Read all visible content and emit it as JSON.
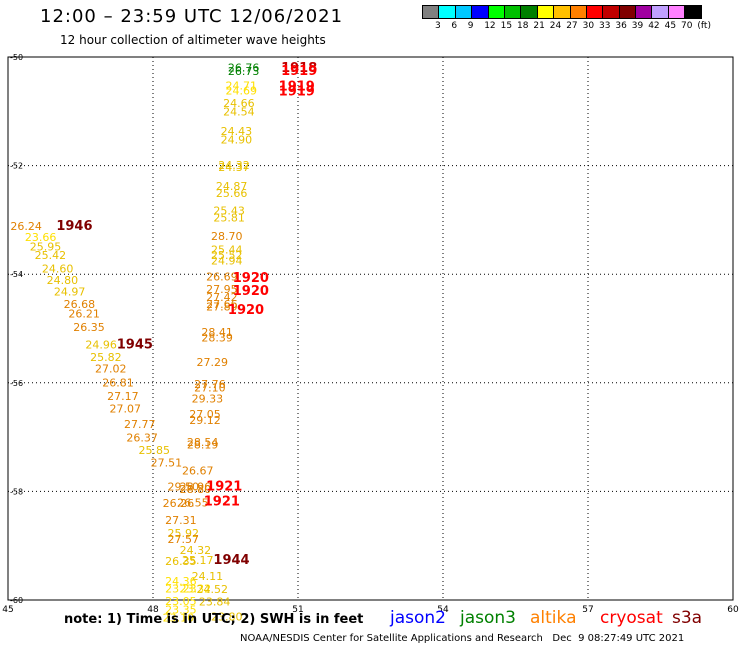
{
  "title": "12:00 – 23:59 UTC 12/06/2021",
  "subtitle": "12 hour collection of altimeter wave heights",
  "colorbar": {
    "colors": [
      "#808080",
      "#00ffff",
      "#00c8ff",
      "#0000ff",
      "#00ff00",
      "#00c000",
      "#008000",
      "#ffff00",
      "#ffc000",
      "#ff8000",
      "#ff0000",
      "#c00000",
      "#800000",
      "#a000a0",
      "#c0a0ff",
      "#ff80ff",
      "#000000"
    ],
    "labels": [
      "3",
      "6",
      "9",
      "12",
      "15",
      "18",
      "21",
      "24",
      "27",
      "30",
      "33",
      "36",
      "39",
      "42",
      "45",
      "70",
      "(ft)"
    ]
  },
  "note": "note:  1) Time is in UTC;  2) SWH is in feet",
  "satellites": [
    {
      "name": "jason2",
      "color": "#0000ff"
    },
    {
      "name": "jason3",
      "color": "#008000"
    },
    {
      "name": "altika",
      "color": "#ff8000"
    },
    {
      "name": "cryosat",
      "color": "#ff0000"
    },
    {
      "name": "s3a",
      "color": "#800000"
    }
  ],
  "credit": "NOAA/NESDIS Center for Satellite Applications and Research   Dec  9 08:27:49 UTC 2021",
  "chart_data": {
    "type": "scatter",
    "xlim": [
      45,
      60
    ],
    "ylim": [
      -60,
      -50
    ],
    "xticks": [
      "45",
      "48",
      "51",
      "54",
      "57",
      "60"
    ],
    "yticks": [
      "-50",
      "-52",
      "-54",
      "-56",
      "-58",
      "-60"
    ],
    "grid": true,
    "points": [
      {
        "x": 49.55,
        "y": -50.27,
        "v": "26.76",
        "c": "#008000"
      },
      {
        "x": 49.55,
        "y": -50.33,
        "v": "26.73",
        "c": "#008000"
      },
      {
        "x": 49.5,
        "y": -50.6,
        "v": "24.71",
        "c": "#ffe000"
      },
      {
        "x": 49.5,
        "y": -50.69,
        "v": "24.69",
        "c": "#ffe000"
      },
      {
        "x": 49.45,
        "y": -50.92,
        "v": "24.66",
        "c": "#e8c000"
      },
      {
        "x": 49.45,
        "y": -51.08,
        "v": "24.54",
        "c": "#e8c000"
      },
      {
        "x": 49.4,
        "y": -51.44,
        "v": "24.43",
        "c": "#e8c000"
      },
      {
        "x": 49.4,
        "y": -51.59,
        "v": "24.90",
        "c": "#e8c000"
      },
      {
        "x": 49.35,
        "y": -52.06,
        "v": "24.32",
        "c": "#e8c000"
      },
      {
        "x": 49.35,
        "y": -52.1,
        "v": "24.37",
        "c": "#e8c000"
      },
      {
        "x": 49.3,
        "y": -52.45,
        "v": "24.87",
        "c": "#e8c000"
      },
      {
        "x": 49.3,
        "y": -52.58,
        "v": "25.66",
        "c": "#e8c000"
      },
      {
        "x": 49.25,
        "y": -52.9,
        "v": "25.43",
        "c": "#e8c000"
      },
      {
        "x": 49.25,
        "y": -53.03,
        "v": "25.81",
        "c": "#e8c000"
      },
      {
        "x": 49.2,
        "y": -53.37,
        "v": "28.70",
        "c": "#e08000"
      },
      {
        "x": 49.2,
        "y": -53.62,
        "v": "25.44",
        "c": "#e8c000"
      },
      {
        "x": 49.2,
        "y": -53.72,
        "v": "25.52",
        "c": "#e8c000"
      },
      {
        "x": 49.2,
        "y": -53.82,
        "v": "24.94",
        "c": "#e8c000"
      },
      {
        "x": 49.1,
        "y": -54.12,
        "v": "26.69",
        "c": "#e08000"
      },
      {
        "x": 49.1,
        "y": -54.35,
        "v": "27.95",
        "c": "#e08000"
      },
      {
        "x": 49.1,
        "y": -54.49,
        "v": "27.42",
        "c": "#e08000"
      },
      {
        "x": 49.1,
        "y": -54.62,
        "v": "27.66",
        "c": "#e08000"
      },
      {
        "x": 49.1,
        "y": -54.67,
        "v": "27.89",
        "c": "#e08000"
      },
      {
        "x": 49.0,
        "y": -55.14,
        "v": "28.41",
        "c": "#e08000"
      },
      {
        "x": 49.0,
        "y": -55.24,
        "v": "28.39",
        "c": "#e08000"
      },
      {
        "x": 48.9,
        "y": -55.69,
        "v": "27.29",
        "c": "#e08000"
      },
      {
        "x": 48.85,
        "y": -56.1,
        "v": "27.76",
        "c": "#e08000"
      },
      {
        "x": 48.85,
        "y": -56.16,
        "v": "27.10",
        "c": "#e08000"
      },
      {
        "x": 48.8,
        "y": -56.36,
        "v": "29.33",
        "c": "#e08000"
      },
      {
        "x": 48.75,
        "y": -56.65,
        "v": "27.05",
        "c": "#e08000"
      },
      {
        "x": 48.75,
        "y": -56.76,
        "v": "29.12",
        "c": "#e08000"
      },
      {
        "x": 48.7,
        "y": -57.16,
        "v": "28.54",
        "c": "#e08000"
      },
      {
        "x": 48.7,
        "y": -57.21,
        "v": "28.19",
        "c": "#e08000"
      },
      {
        "x": 48.6,
        "y": -57.69,
        "v": "26.67",
        "c": "#e08000"
      },
      {
        "x": 48.55,
        "y": -57.98,
        "v": "28.96",
        "c": "#e08000"
      },
      {
        "x": 48.55,
        "y": -58.03,
        "v": "28.80",
        "c": "#e08000"
      },
      {
        "x": 48.3,
        "y": -57.98,
        "v": "29.50",
        "c": "#e08000"
      },
      {
        "x": 48.5,
        "y": -58.28,
        "v": "26.55",
        "c": "#e08000"
      },
      {
        "x": 48.2,
        "y": -58.29,
        "v": "26.26",
        "c": "#e08000"
      },
      {
        "x": 48.25,
        "y": -58.6,
        "v": "27.31",
        "c": "#e08000"
      },
      {
        "x": 48.3,
        "y": -58.84,
        "v": "25.92",
        "c": "#e8c000"
      },
      {
        "x": 48.3,
        "y": -58.95,
        "v": "27.57",
        "c": "#e08000"
      },
      {
        "x": 48.55,
        "y": -59.15,
        "v": "24.32",
        "c": "#e8c000"
      },
      {
        "x": 48.25,
        "y": -59.36,
        "v": "26.35",
        "c": "#e8c000"
      },
      {
        "x": 48.6,
        "y": -59.34,
        "v": "25.17",
        "c": "#e8c000"
      },
      {
        "x": 48.8,
        "y": -59.63,
        "v": "24.11",
        "c": "#e8c000"
      },
      {
        "x": 48.25,
        "y": -59.72,
        "v": "24.36",
        "c": "#ffe000"
      },
      {
        "x": 48.25,
        "y": -59.86,
        "v": "23.23",
        "c": "#ffe000"
      },
      {
        "x": 48.55,
        "y": -59.86,
        "v": "23.32",
        "c": "#ffe000"
      },
      {
        "x": 48.9,
        "y": -59.87,
        "v": "24.52",
        "c": "#e8c000"
      },
      {
        "x": 48.25,
        "y": -60.09,
        "v": "23.05",
        "c": "#ffe000"
      },
      {
        "x": 48.25,
        "y": -60.25,
        "v": "23.35",
        "c": "#ffe000"
      },
      {
        "x": 48.2,
        "y": -60.4,
        "v": "23.10",
        "c": "#ffe000"
      },
      {
        "x": 48.95,
        "y": -60.1,
        "v": "23.84",
        "c": "#e8c000"
      },
      {
        "x": 49.2,
        "y": -60.38,
        "v": "23.80",
        "c": "#e8c000"
      },
      {
        "x": 45.05,
        "y": -53.19,
        "v": "26.24",
        "c": "#e08000"
      },
      {
        "x": 45.35,
        "y": -53.39,
        "v": "23.66",
        "c": "#ffe000"
      },
      {
        "x": 45.45,
        "y": -53.56,
        "v": "25.95",
        "c": "#e8c000"
      },
      {
        "x": 45.55,
        "y": -53.72,
        "v": "25.42",
        "c": "#e8c000"
      },
      {
        "x": 45.7,
        "y": -53.97,
        "v": "24.60",
        "c": "#e8c000"
      },
      {
        "x": 45.8,
        "y": -54.18,
        "v": "24.80",
        "c": "#e8c000"
      },
      {
        "x": 45.95,
        "y": -54.39,
        "v": "24.97",
        "c": "#e8c000"
      },
      {
        "x": 46.15,
        "y": -54.62,
        "v": "26.68",
        "c": "#e08000"
      },
      {
        "x": 46.25,
        "y": -54.8,
        "v": "26.21",
        "c": "#e08000"
      },
      {
        "x": 46.35,
        "y": -55.05,
        "v": "26.35",
        "c": "#e08000"
      },
      {
        "x": 46.6,
        "y": -55.37,
        "v": "24.96",
        "c": "#e8c000"
      },
      {
        "x": 46.7,
        "y": -55.6,
        "v": "25.82",
        "c": "#e8c000"
      },
      {
        "x": 46.8,
        "y": -55.81,
        "v": "27.02",
        "c": "#e08000"
      },
      {
        "x": 46.95,
        "y": -56.07,
        "v": "26.81",
        "c": "#e08000"
      },
      {
        "x": 47.05,
        "y": -56.32,
        "v": "27.17",
        "c": "#e08000"
      },
      {
        "x": 47.1,
        "y": -56.55,
        "v": "27.07",
        "c": "#e08000"
      },
      {
        "x": 47.4,
        "y": -56.83,
        "v": "27.77",
        "c": "#e08000"
      },
      {
        "x": 47.45,
        "y": -57.08,
        "v": "26.37",
        "c": "#e08000"
      },
      {
        "x": 47.7,
        "y": -57.31,
        "v": "25.85",
        "c": "#e8c000"
      },
      {
        "x": 47.95,
        "y": -57.54,
        "v": "27.51",
        "c": "#e08000"
      }
    ],
    "times": [
      {
        "x": 50.65,
        "y": -50.28,
        "t": "1918",
        "c": "#c00000"
      },
      {
        "x": 50.65,
        "y": -50.33,
        "t": "1919",
        "c": "#ff0000"
      },
      {
        "x": 50.6,
        "y": -50.62,
        "t": "1919",
        "c": "#ff0000"
      },
      {
        "x": 50.6,
        "y": -50.71,
        "t": "1919",
        "c": "#ff0000"
      },
      {
        "x": 46.0,
        "y": -53.19,
        "t": "1946",
        "c": "#800000"
      },
      {
        "x": 49.65,
        "y": -54.14,
        "t": "1920",
        "c": "#ff0000"
      },
      {
        "x": 49.65,
        "y": -54.38,
        "t": "1920",
        "c": "#ff0000"
      },
      {
        "x": 49.55,
        "y": -54.73,
        "t": "1920",
        "c": "#ff0000"
      },
      {
        "x": 47.25,
        "y": -55.37,
        "t": "1945",
        "c": "#800000"
      },
      {
        "x": 49.1,
        "y": -57.98,
        "t": "1921",
        "c": "#ff0000"
      },
      {
        "x": 49.05,
        "y": -58.26,
        "t": "1921",
        "c": "#ff0000"
      },
      {
        "x": 49.25,
        "y": -59.34,
        "t": "1944",
        "c": "#800000"
      }
    ]
  }
}
